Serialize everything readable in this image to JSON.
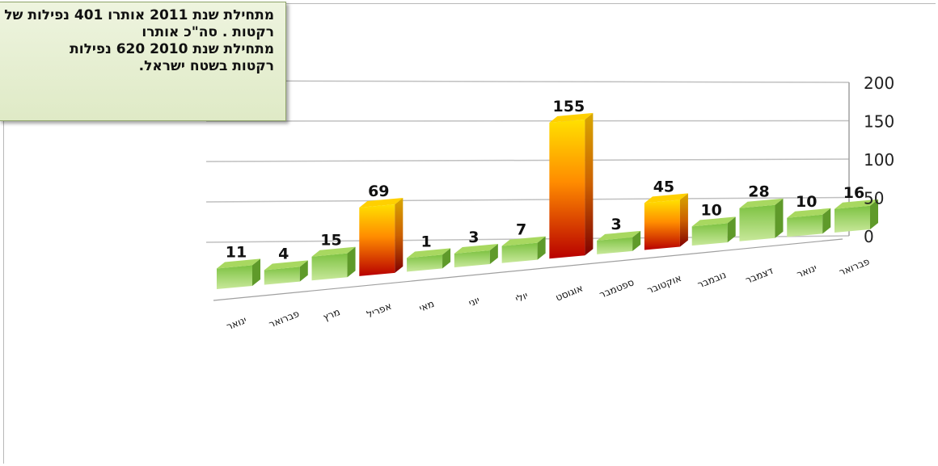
{
  "annotation": "מתחילת שנת 2011 אותרו 401 נפילות של  רקטות .  סה\"כ אותרו\nמתחילת שנת 2010  620 נפילות\nרקטות בשטח ישראל.",
  "colors": {
    "low_top": "#a8d860",
    "low_front": "#7dc242",
    "low_side": "#5f9a2a",
    "high_top": "#ffd000",
    "high_front_top": "#ffe000",
    "high_front_mid": "#ff8c00",
    "high_front_bottom": "#c00000",
    "grid": "#c0c0c0"
  },
  "chart_data": {
    "type": "bar",
    "style": "3d",
    "categories": [
      "ינואר",
      "פברואר",
      "מרץ",
      "אפריל",
      "מאי",
      "יוני",
      "יולי",
      "אוגוסט",
      "ספטמבר",
      "אוקטובר",
      "נובמבר",
      "דצמבר",
      "ינואר",
      "פברואר"
    ],
    "values": [
      11,
      4,
      15,
      69,
      1,
      3,
      7,
      155,
      3,
      45,
      10,
      28,
      10,
      16
    ],
    "data_labels": [
      "11",
      "4",
      "15",
      "69",
      "1",
      "3",
      "7",
      "155",
      "3",
      "45",
      "10",
      "28",
      "10",
      "16"
    ],
    "y_ticks": [
      "0",
      "50",
      "100",
      "150",
      "200"
    ],
    "ylim": [
      0,
      200
    ],
    "grid": true,
    "legend": false,
    "title": "",
    "xlabel": "",
    "ylabel": ""
  }
}
